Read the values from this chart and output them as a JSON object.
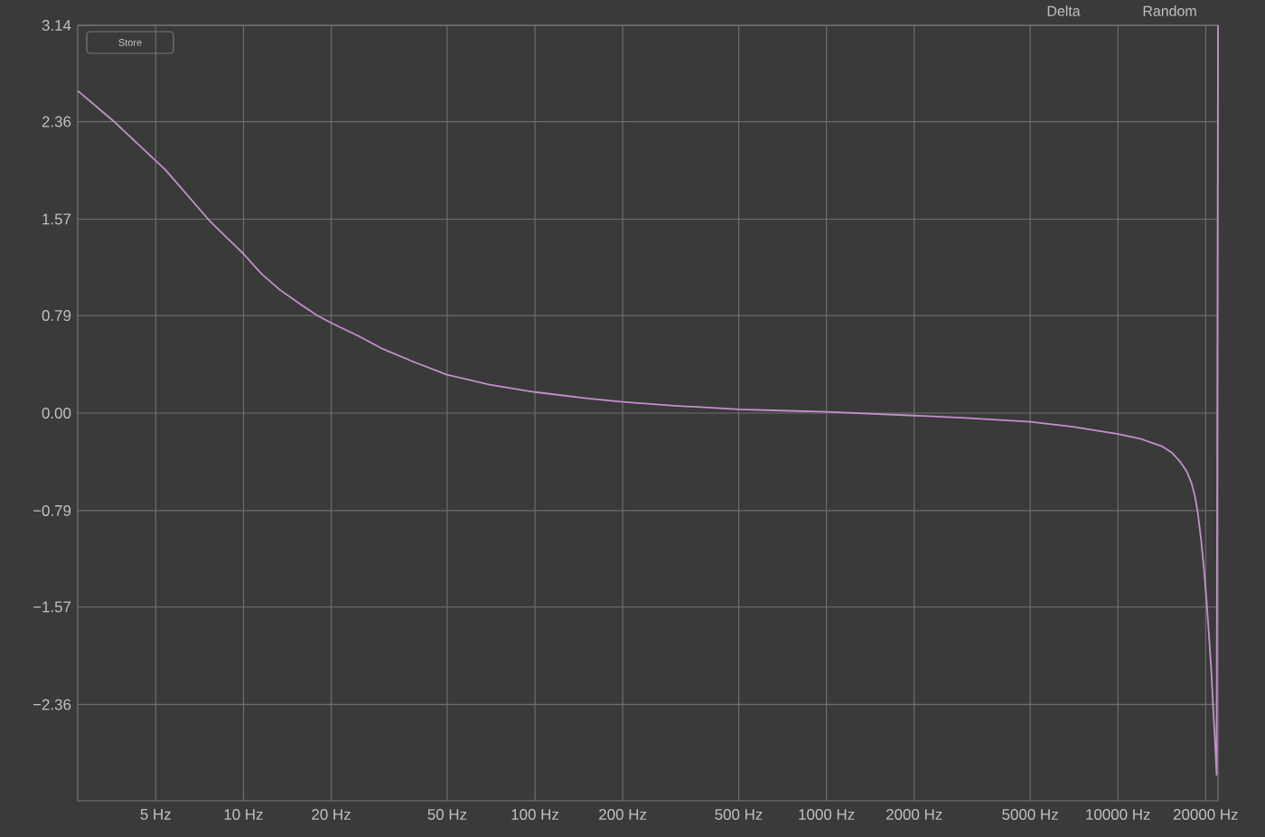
{
  "chart_data": {
    "type": "line",
    "x": [
      2.7,
      3.6,
      5.4,
      7.7,
      10,
      11.5,
      13.3,
      15.5,
      17.9,
      20,
      25,
      30,
      38.8,
      50,
      70,
      100,
      150,
      200,
      300,
      500,
      700,
      1000,
      2000,
      3000,
      5000,
      7000,
      10000,
      12000,
      14200,
      15300,
      16300,
      17200,
      17900,
      18400,
      18800,
      19300,
      19800,
      20200,
      20500,
      20900,
      21200,
      21500,
      21800,
      22050
    ],
    "series": [
      {
        "color": "#c490cc",
        "values": [
          2.61,
          2.36,
          1.97,
          1.55,
          1.29,
          1.13,
          1.0,
          0.89,
          0.79,
          0.73,
          0.62,
          0.52,
          0.41,
          0.31,
          0.23,
          0.17,
          0.12,
          0.09,
          0.06,
          0.03,
          0.02,
          0.01,
          -0.02,
          -0.04,
          -0.07,
          -0.11,
          -0.17,
          -0.21,
          -0.27,
          -0.32,
          -0.39,
          -0.47,
          -0.57,
          -0.68,
          -0.81,
          -1.03,
          -1.3,
          -1.56,
          -1.78,
          -2.08,
          -2.37,
          -2.63,
          -2.93,
          3.14
        ]
      }
    ],
    "xlim": [
      2.7,
      22050
    ],
    "ylim": [
      -3.14,
      3.14
    ],
    "xticks": [
      {
        "value": 5,
        "label": "5 Hz"
      },
      {
        "value": 10,
        "label": "10 Hz"
      },
      {
        "value": 20,
        "label": "20 Hz"
      },
      {
        "value": 50,
        "label": "50 Hz"
      },
      {
        "value": 100,
        "label": "100 Hz"
      },
      {
        "value": 200,
        "label": "200 Hz"
      },
      {
        "value": 500,
        "label": "500 Hz"
      },
      {
        "value": 1000,
        "label": "1000 Hz"
      },
      {
        "value": 2000,
        "label": "2000 Hz"
      },
      {
        "value": 5000,
        "label": "5000 Hz"
      },
      {
        "value": 10000,
        "label": "10000 Hz"
      },
      {
        "value": 20000,
        "label": "20000 Hz"
      }
    ],
    "yticks": [
      3.14,
      2.36,
      1.57,
      0.79,
      {
        "value": 0,
        "label": "0.00"
      },
      {
        "value": -0.79,
        "label": "−0.79"
      },
      {
        "value": -1.57,
        "label": "−1.57"
      },
      {
        "value": -2.36,
        "label": "−2.36"
      }
    ],
    "log": "x",
    "grid": true,
    "annotations": [
      "Store",
      "Delta",
      "Random"
    ]
  }
}
